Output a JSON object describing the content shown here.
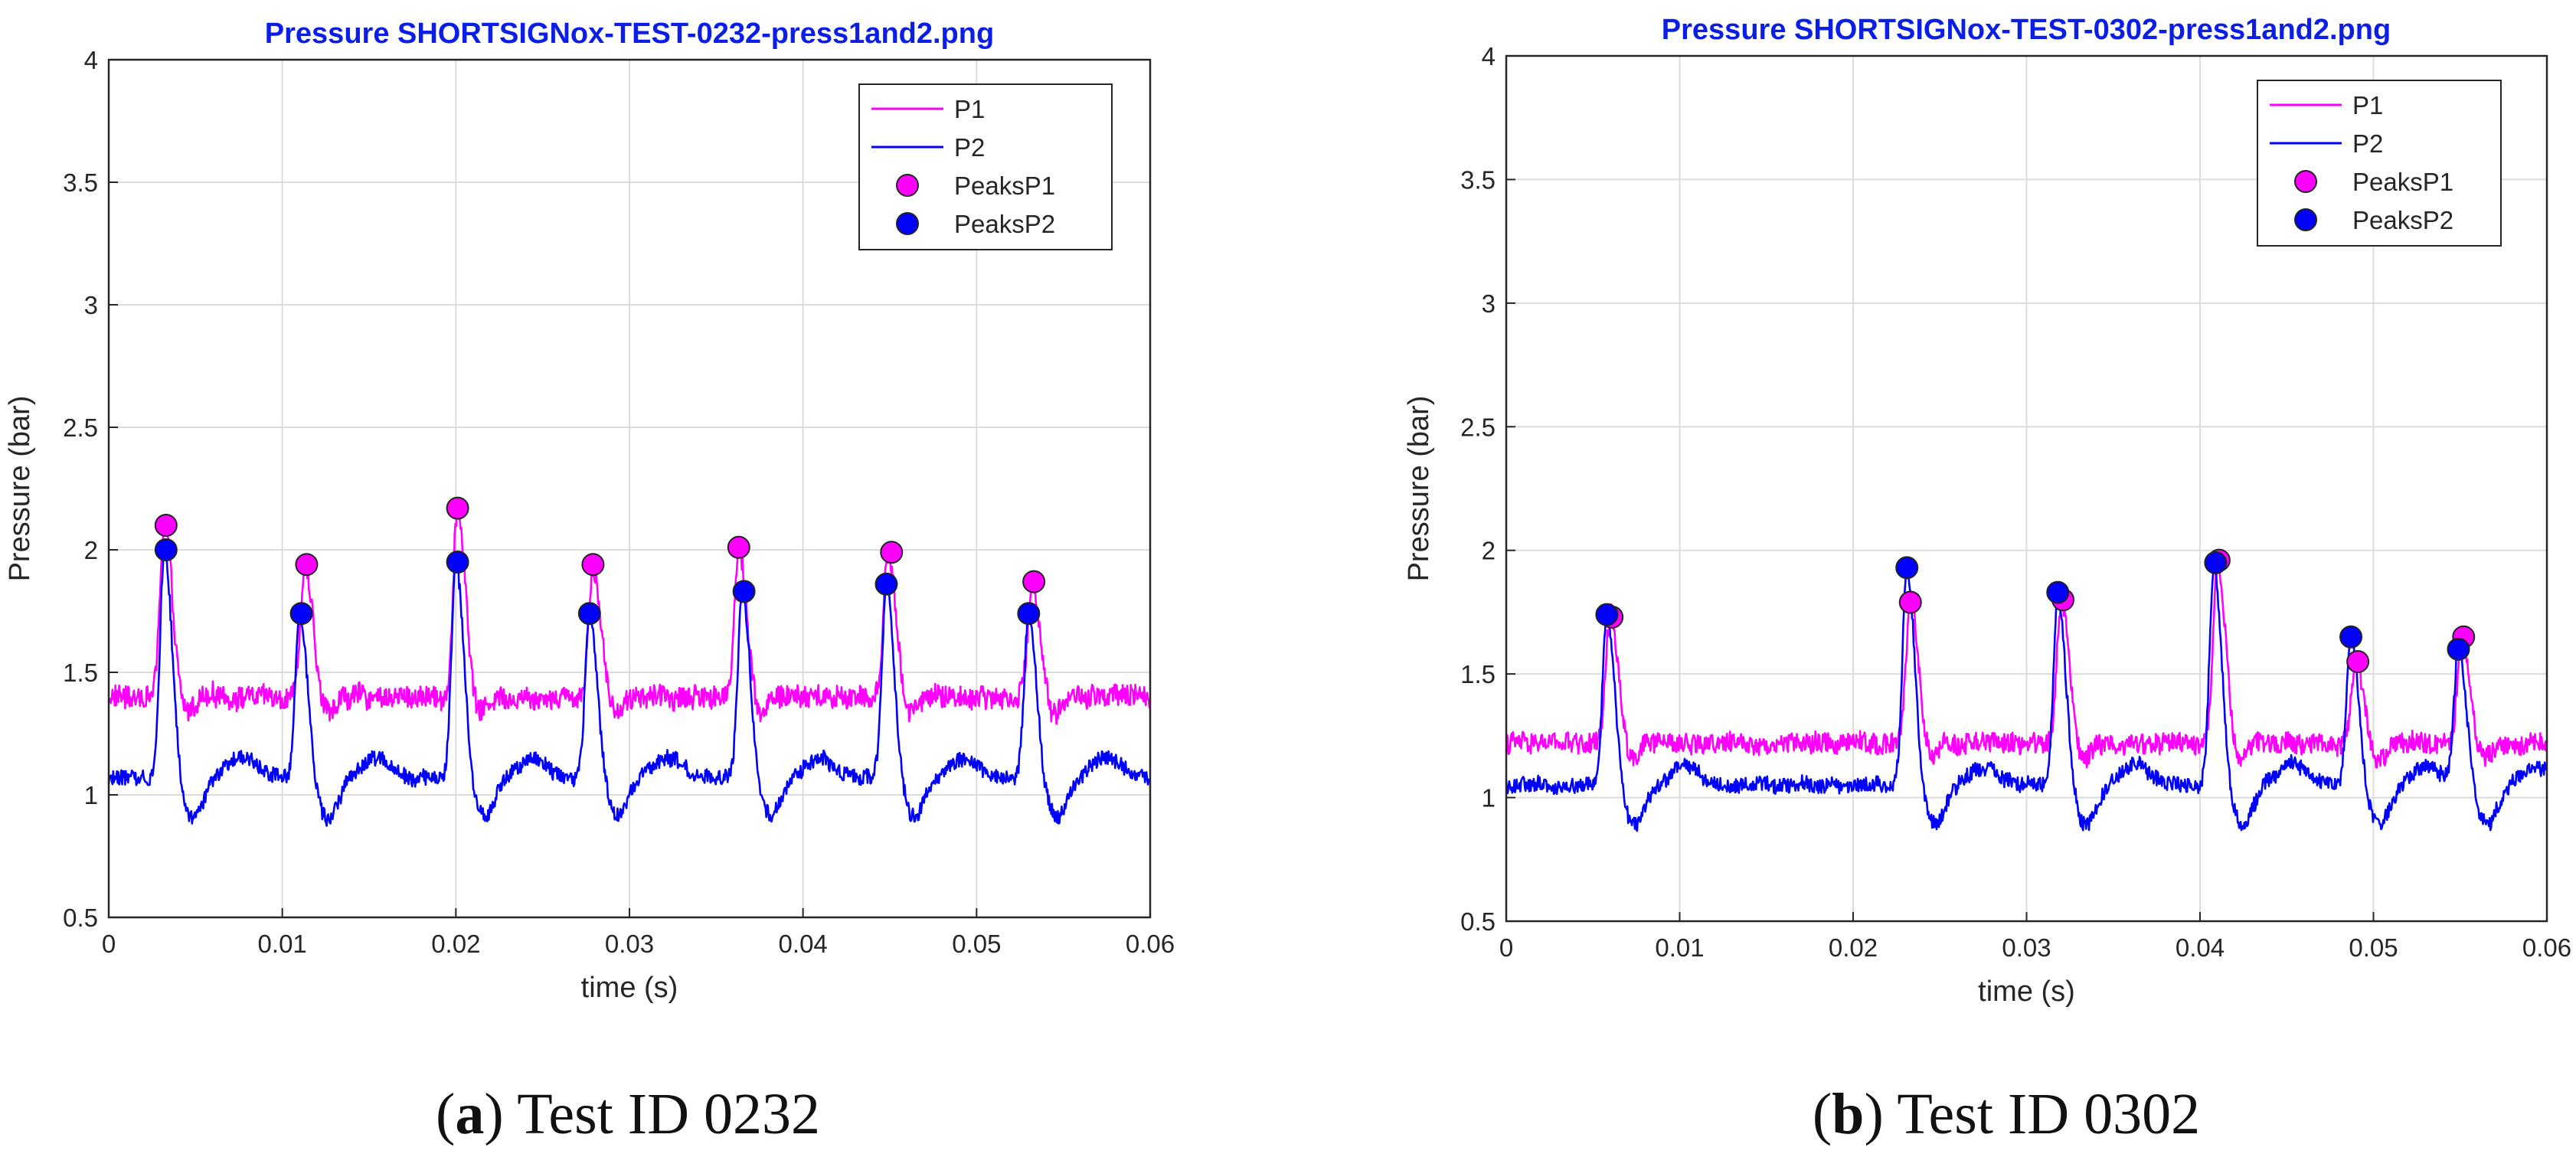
{
  "figure": {
    "panels": [
      {
        "caption": {
          "open": "(",
          "letter": "a",
          "close": ")",
          "text": " Test ID 0232"
        },
        "legend": [
          "P1",
          "P2",
          "PeaksP1",
          "PeaksP2"
        ]
      },
      {
        "caption": {
          "open": "(",
          "letter": "b",
          "close": ")",
          "text": " Test ID 0302"
        },
        "legend": [
          "P1",
          "P2",
          "PeaksP1",
          "PeaksP2"
        ]
      }
    ]
  },
  "chart_data": [
    {
      "type": "line",
      "title": "Pressure SHORTSIGNox-TEST-0232-press1and2.png",
      "xlabel": "time (s)",
      "ylabel": "Pressure (bar)",
      "xlim": [
        0,
        0.06
      ],
      "ylim": [
        0.5,
        4
      ],
      "xticks": [
        0,
        0.01,
        0.02,
        0.03,
        0.04,
        0.05,
        0.06
      ],
      "xtick_labels": [
        "0",
        "0.01",
        "0.02",
        "0.03",
        "0.04",
        "0.05",
        "0.06"
      ],
      "yticks": [
        0.5,
        1,
        1.5,
        2,
        2.5,
        3,
        3.5,
        4
      ],
      "ytick_labels": [
        "0.5",
        "1",
        "1.5",
        "2",
        "2.5",
        "3",
        "3.5",
        "4"
      ],
      "grid": true,
      "legend_position": "top-right",
      "colors": {
        "P1": "#ff00ff",
        "P2": "#0000ff"
      },
      "series": [
        {
          "name": "P1",
          "style": "line",
          "baseline": 1.4,
          "noise": 0.045,
          "pulses": [
            [
              0.0032,
              2.1
            ],
            [
              0.0113,
              1.94
            ],
            [
              0.0201,
              2.17
            ],
            [
              0.0279,
              1.94
            ],
            [
              0.0363,
              2.01
            ],
            [
              0.0449,
              1.99
            ],
            [
              0.0532,
              1.87
            ]
          ]
        },
        {
          "name": "P2",
          "style": "line",
          "baseline": 1.07,
          "noise": 0.03,
          "pulses": [
            [
              0.0032,
              2.0
            ],
            [
              0.011,
              1.74
            ],
            [
              0.02,
              1.95
            ],
            [
              0.0277,
              1.74
            ],
            [
              0.0365,
              1.83
            ],
            [
              0.0448,
              1.86
            ],
            [
              0.053,
              1.74
            ]
          ]
        },
        {
          "name": "PeaksP1",
          "style": "markers",
          "x": [
            0.0033,
            0.0114,
            0.0201,
            0.0279,
            0.0363,
            0.0451,
            0.0533
          ],
          "y": [
            2.1,
            1.94,
            2.17,
            1.94,
            2.01,
            1.99,
            1.87
          ]
        },
        {
          "name": "PeaksP2",
          "style": "markers",
          "x": [
            0.0033,
            0.0111,
            0.0201,
            0.0277,
            0.0366,
            0.0448,
            0.053
          ],
          "y": [
            2.0,
            1.74,
            1.95,
            1.74,
            1.83,
            1.86,
            1.74
          ]
        }
      ]
    },
    {
      "type": "line",
      "title": "Pressure SHORTSIGNox-TEST-0302-press1and2.png",
      "xlabel": "time (s)",
      "ylabel": "Pressure (bar)",
      "xlim": [
        0,
        0.06
      ],
      "ylim": [
        0.5,
        4
      ],
      "xticks": [
        0,
        0.01,
        0.02,
        0.03,
        0.04,
        0.05,
        0.06
      ],
      "xtick_labels": [
        "0",
        "0.01",
        "0.02",
        "0.03",
        "0.04",
        "0.05",
        "0.06"
      ],
      "yticks": [
        0.5,
        1,
        1.5,
        2,
        2.5,
        3,
        3.5,
        4
      ],
      "ytick_labels": [
        "0.5",
        "1",
        "1.5",
        "2",
        "2.5",
        "3",
        "3.5",
        "4"
      ],
      "grid": true,
      "legend_position": "top-right",
      "colors": {
        "P1": "#ff00ff",
        "P2": "#0000ff"
      },
      "series": [
        {
          "name": "P1",
          "style": "line",
          "baseline": 1.22,
          "noise": 0.04,
          "pulses": [
            [
              0.006,
              1.74
            ],
            [
              0.0233,
              1.79
            ],
            [
              0.032,
              1.8
            ],
            [
              0.041,
              1.96
            ],
            [
              0.049,
              1.55
            ],
            [
              0.0551,
              1.65
            ]
          ]
        },
        {
          "name": "P2",
          "style": "line",
          "baseline": 1.05,
          "noise": 0.03,
          "pulses": [
            [
              0.0058,
              1.74
            ],
            [
              0.0231,
              1.93
            ],
            [
              0.0318,
              1.83
            ],
            [
              0.0408,
              1.95
            ],
            [
              0.0487,
              1.65
            ],
            [
              0.0549,
              1.6
            ]
          ]
        },
        {
          "name": "PeaksP1",
          "style": "markers",
          "x": [
            0.0061,
            0.0233,
            0.0321,
            0.0411,
            0.0491,
            0.0552
          ],
          "y": [
            1.73,
            1.79,
            1.8,
            1.96,
            1.55,
            1.65
          ]
        },
        {
          "name": "PeaksP2",
          "style": "markers",
          "x": [
            0.0058,
            0.0231,
            0.0318,
            0.0409,
            0.0487,
            0.0549
          ],
          "y": [
            1.74,
            1.93,
            1.83,
            1.95,
            1.65,
            1.6
          ]
        }
      ]
    }
  ]
}
